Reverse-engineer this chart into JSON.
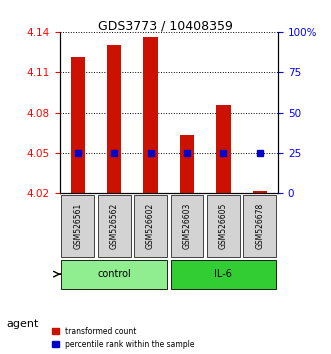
{
  "title": "GDS3773 / 10408359",
  "samples": [
    "GSM526561",
    "GSM526562",
    "GSM526602",
    "GSM526603",
    "GSM526605",
    "GSM526678"
  ],
  "red_values": [
    4.121,
    4.13,
    4.136,
    4.063,
    4.086,
    4.022
  ],
  "blue_values": [
    4.05,
    4.05,
    4.05,
    4.05,
    4.05,
    4.05
  ],
  "blue_pct": [
    25,
    25,
    25,
    25,
    25,
    25
  ],
  "ylim_left": [
    4.02,
    4.14
  ],
  "yticks_left": [
    4.02,
    4.05,
    4.08,
    4.11,
    4.14
  ],
  "ytick_labels_left": [
    "4.02",
    "4.05",
    "4.08",
    "4.11",
    "4.14"
  ],
  "ylim_right": [
    0,
    100
  ],
  "yticks_right": [
    0,
    25,
    50,
    75,
    100
  ],
  "ytick_labels_right": [
    "0",
    "25",
    "50",
    "75",
    "100%"
  ],
  "groups": [
    {
      "label": "control",
      "indices": [
        0,
        1,
        2
      ],
      "color": "#90EE90"
    },
    {
      "label": "IL-6",
      "indices": [
        3,
        4,
        5
      ],
      "color": "#32CD32"
    }
  ],
  "agent_label": "agent",
  "bar_color": "#CC1100",
  "blue_color": "#0000CC",
  "bar_width": 0.4,
  "grid_color": "black",
  "bg_color": "#ffffff",
  "legend_red_label": "transformed count",
  "legend_blue_label": "percentile rank within the sample"
}
